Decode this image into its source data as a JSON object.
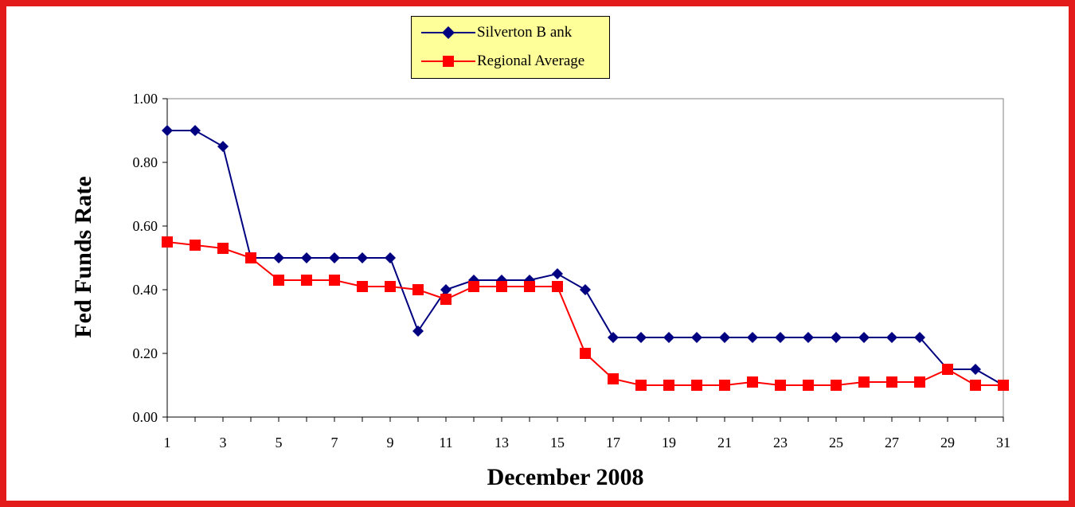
{
  "chart_data": {
    "type": "line",
    "xlabel": "December 2008",
    "ylabel": "Fed Funds Rate",
    "x": [
      1,
      2,
      3,
      4,
      5,
      6,
      7,
      8,
      9,
      10,
      11,
      12,
      13,
      14,
      15,
      16,
      17,
      18,
      19,
      20,
      21,
      22,
      23,
      24,
      25,
      26,
      27,
      28,
      29,
      30,
      31
    ],
    "xlim": [
      1,
      31
    ],
    "ylim": [
      0,
      1
    ],
    "x_ticks": [
      "1",
      "3",
      "5",
      "7",
      "9",
      "11",
      "13",
      "15",
      "17",
      "19",
      "21",
      "23",
      "25",
      "27",
      "29",
      "31"
    ],
    "y_ticks": [
      "0.00",
      "0.20",
      "0.40",
      "0.60",
      "0.80",
      "1.00"
    ],
    "grid": false,
    "legend_position": "top-center",
    "series": [
      {
        "name": "Silverton B ank",
        "color": "#000080",
        "marker": "diamond",
        "values": [
          0.9,
          0.9,
          0.85,
          0.5,
          0.5,
          0.5,
          0.5,
          0.5,
          0.5,
          0.27,
          0.4,
          0.43,
          0.43,
          0.43,
          0.45,
          0.4,
          0.25,
          0.25,
          0.25,
          0.25,
          0.25,
          0.25,
          0.25,
          0.25,
          0.25,
          0.25,
          0.25,
          0.25,
          0.15,
          0.15,
          0.1
        ]
      },
      {
        "name": "Regional Average",
        "color": "#ff0000",
        "marker": "square",
        "values": [
          0.55,
          0.54,
          0.53,
          0.5,
          0.43,
          0.43,
          0.43,
          0.41,
          0.41,
          0.4,
          0.37,
          0.41,
          0.41,
          0.41,
          0.41,
          0.2,
          0.12,
          0.1,
          0.1,
          0.1,
          0.1,
          0.11,
          0.1,
          0.1,
          0.1,
          0.11,
          0.11,
          0.11,
          0.15,
          0.1,
          0.1
        ]
      }
    ]
  }
}
